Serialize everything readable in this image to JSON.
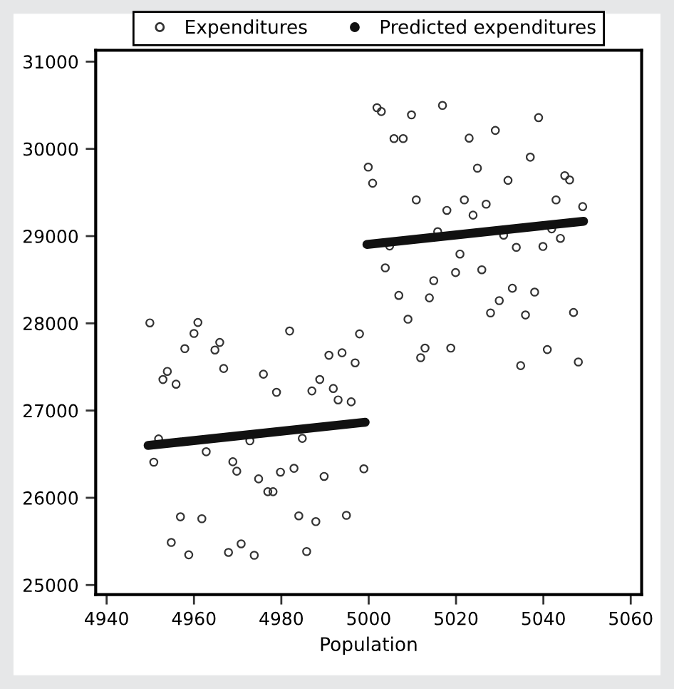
{
  "chart_data": {
    "type": "scatter",
    "xlabel": "Population",
    "xlim": [
      4937.5,
      5062.5
    ],
    "ylim": [
      24890,
      31130
    ],
    "xticks": [
      4940,
      4960,
      4980,
      5000,
      5020,
      5040,
      5060
    ],
    "yticks": [
      25000,
      26000,
      27000,
      28000,
      29000,
      30000,
      31000
    ],
    "grid": false,
    "legend": "top",
    "series": [
      {
        "name": "Expenditures",
        "marker": "circle",
        "color": "#333333",
        "x": [
          4949.9,
          4960.9,
          4960.0,
          4957.9,
          4964.8,
          4965.9,
          4953.9,
          4952.9,
          4955.9,
          4966.8,
          4981.9,
          4997.9,
          4990.9,
          4993.9,
          4996.9,
          4975.9,
          4978.9,
          4988.8,
          4987.0,
          4991.9,
          4993.0,
          4996.0,
          4951.9,
          4950.8,
          4962.8,
          4972.8,
          4984.8,
          4968.9,
          4969.8,
          4974.8,
          4979.8,
          4982.9,
          4989.8,
          4998.9,
          4976.9,
          4978.1,
          4956.9,
          4961.8,
          4984.0,
          4987.9,
          4994.9,
          4954.8,
          4958.8,
          4967.9,
          4970.8,
          4973.8,
          4985.8,
          5001.9,
          5002.9,
          5009.8,
          5016.9,
          5038.9,
          5005.8,
          5007.9,
          5023.0,
          5029.0,
          4999.9,
          5000.9,
          5024.9,
          5037.0,
          5031.9,
          5044.9,
          5046.0,
          5010.9,
          5021.9,
          5026.9,
          5017.9,
          5023.9,
          5042.9,
          5049.0,
          5015.8,
          5004.8,
          5030.9,
          5033.8,
          5039.9,
          5041.9,
          5043.9,
          5003.8,
          5020.9,
          5014.9,
          5019.9,
          5025.9,
          5006.9,
          5013.9,
          5032.9,
          5038.0,
          5029.9,
          5009.0,
          5027.9,
          5035.9,
          5046.9,
          5012.9,
          5011.9,
          5018.8,
          5040.9,
          5034.8,
          5048.0
        ],
        "values": [
          28005,
          28010,
          27884,
          27710,
          27694,
          27781,
          27449,
          27356,
          27302,
          27482,
          27912,
          27879,
          27634,
          27662,
          27547,
          27417,
          27209,
          27356,
          27225,
          27253,
          27122,
          27100,
          26675,
          26408,
          26528,
          26653,
          26681,
          26413,
          26305,
          26217,
          26294,
          26338,
          26245,
          26332,
          26070,
          26070,
          25782,
          25760,
          25793,
          25727,
          25799,
          25488,
          25346,
          25374,
          25472,
          25341,
          25384,
          30472,
          30428,
          30390,
          30498,
          30358,
          30118,
          30118,
          30123,
          30211,
          29791,
          29606,
          29779,
          29905,
          29639,
          29693,
          29644,
          29415,
          29415,
          29366,
          29295,
          29240,
          29415,
          29338,
          29051,
          28887,
          29011,
          28871,
          28881,
          29083,
          28974,
          28636,
          28794,
          28489,
          28582,
          28614,
          28320,
          28292,
          28402,
          28358,
          28260,
          28047,
          28119,
          28096,
          28124,
          27716,
          27606,
          27716,
          27699,
          27515,
          27557
        ]
      },
      {
        "name": "Predicted expenditures",
        "type": "line",
        "color": "#111111",
        "x": [
          4949.5,
          4999.2,
          4999.4,
          4999.6,
          5049.2
        ],
        "values": [
          26600,
          26866,
          null,
          28904,
          29170
        ]
      }
    ]
  }
}
